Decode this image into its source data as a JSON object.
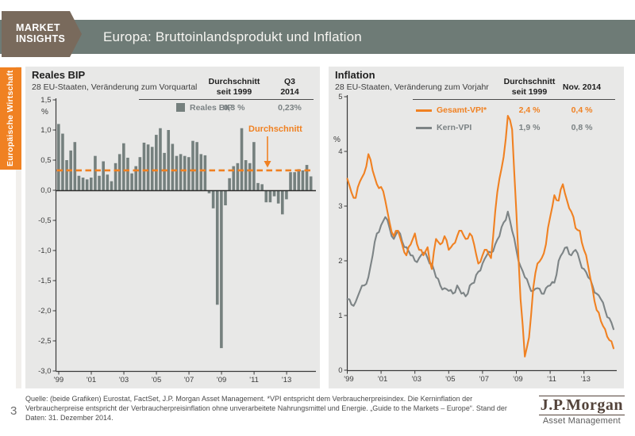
{
  "header": {
    "brand_line1": "MARKET",
    "brand_line2": "INSIGHTS",
    "title": "Europa: Bruttoinlandsprodukt und Inflation"
  },
  "sidebar": {
    "tab_label": "Europäische Wirtschaft"
  },
  "colors": {
    "accent_orange": "#F08122",
    "series_gray": "#75807E",
    "line_gray": "#7D8486",
    "header_bar": "#6E7B76",
    "brand_brown": "#796A5C",
    "panel_bg": "#E8E8E7"
  },
  "chart_data": [
    {
      "id": "reales-bip",
      "type": "bar",
      "title": "Reales BIP",
      "subtitle": "28 EU-Staaten, Veränderung zum Vorquartal",
      "ylabel": "%",
      "ylim": [
        -3.0,
        1.5
      ],
      "yticks": [
        "1,5",
        "1,0",
        "0,5",
        "0,0",
        "-0,5",
        "-1,0",
        "-1,5",
        "-2,0",
        "-2,5",
        "-3,0"
      ],
      "xticks": [
        "'99",
        "'01",
        "'03",
        "'05",
        "'07",
        "'09",
        "'11",
        "'13"
      ],
      "x_start_year": 1999,
      "frequency": "quarterly",
      "categories_note": "1999Q1 bis 2014Q3",
      "values": [
        1.1,
        0.94,
        0.5,
        0.66,
        0.8,
        0.24,
        0.21,
        0.18,
        0.21,
        0.57,
        0.24,
        0.48,
        0.26,
        0.15,
        0.45,
        0.6,
        0.78,
        0.54,
        0.28,
        0.4,
        0.55,
        0.79,
        0.76,
        0.72,
        0.92,
        1.03,
        0.62,
        1.0,
        0.77,
        0.57,
        0.6,
        0.57,
        0.55,
        0.82,
        0.8,
        0.6,
        0.58,
        -0.05,
        -0.3,
        -1.9,
        -2.62,
        -0.25,
        0.2,
        0.4,
        0.45,
        1.03,
        0.5,
        0.45,
        0.8,
        0.12,
        0.1,
        -0.2,
        -0.2,
        -0.1,
        -0.22,
        -0.4,
        -0.15,
        0.3,
        0.3,
        0.35,
        0.33,
        0.42,
        0.23
      ],
      "average_line": 0.33,
      "annotation": "Durchschnitt",
      "stats": {
        "col1_header": "Durchschnitt\nseit 1999",
        "col2_header": "Q3\n2014",
        "series_label": "Reales BIP",
        "avg": "0,3 %",
        "latest": "0,23%"
      }
    },
    {
      "id": "inflation",
      "type": "line",
      "title": "Inflation",
      "subtitle": "28 EU-Staaten, Veränderung zum Vorjahr",
      "ylabel": "%",
      "ylim": [
        0,
        5
      ],
      "yticks": [
        "5",
        "4",
        "3",
        "2",
        "1",
        "0"
      ],
      "xticks": [
        "'99",
        "'01",
        "'03",
        "'05",
        "'07",
        "'09",
        "'11",
        "'13"
      ],
      "x_start_year": 1999,
      "x_step_years": 0.25,
      "series": [
        {
          "name": "Kern-VPI",
          "color": "#7D8486",
          "values": [
            1.3,
            1.2,
            1.25,
            1.45,
            1.55,
            1.7,
            2.1,
            2.5,
            2.65,
            2.8,
            2.6,
            2.4,
            2.55,
            2.35,
            2.25,
            2.1,
            2.0,
            2.05,
            2.15,
            2.05,
            1.95,
            1.7,
            1.55,
            1.5,
            1.45,
            1.4,
            1.55,
            1.4,
            1.35,
            1.55,
            1.6,
            1.8,
            1.95,
            2.1,
            2.15,
            2.3,
            2.45,
            2.7,
            2.9,
            2.55,
            2.2,
            1.9,
            1.7,
            1.55,
            1.45,
            1.5,
            1.4,
            1.5,
            1.55,
            1.6,
            2.0,
            2.15,
            2.25,
            2.1,
            2.2,
            2.0,
            1.85,
            1.7,
            1.55,
            1.4,
            1.3,
            1.1,
            0.95,
            0.75
          ]
        },
        {
          "name": "Gesamt-VPI*",
          "color": "#F08122",
          "values": [
            3.5,
            3.25,
            3.15,
            3.45,
            3.6,
            3.95,
            3.65,
            3.4,
            3.35,
            3.1,
            2.7,
            2.45,
            2.55,
            2.3,
            2.1,
            2.3,
            2.5,
            2.2,
            2.1,
            2.25,
            1.85,
            2.4,
            2.3,
            2.45,
            2.2,
            2.3,
            2.45,
            2.55,
            2.4,
            2.5,
            2.3,
            1.95,
            2.1,
            2.2,
            2.05,
            2.9,
            3.5,
            3.9,
            4.65,
            4.4,
            2.9,
            1.3,
            0.25,
            0.6,
            1.5,
            1.95,
            2.05,
            2.3,
            2.8,
            3.2,
            3.1,
            3.4,
            3.1,
            2.9,
            2.6,
            2.55,
            2.2,
            1.9,
            1.5,
            1.1,
            0.9,
            0.75,
            0.55,
            0.4
          ]
        }
      ],
      "stats": {
        "col1_header": "Durchschnitt\nseit 1999",
        "col2_header": "Nov. 2014",
        "rows": [
          {
            "label": "Gesamt-VPI*",
            "avg": "2,4 %",
            "latest": "0,4 %"
          },
          {
            "label": "Kern-VPI",
            "avg": "1,9 %",
            "latest": "0,8 %"
          }
        ]
      }
    }
  ],
  "footer": {
    "source": "Quelle: (beide Grafiken) Eurostat, FactSet, J.P. Morgan Asset Management. *VPI entspricht dem Verbraucherpreisindex. Die Kerninflation der Verbraucherpreise entspricht der Verbraucherpreisinflation ohne unverarbeitete Nahrungsmittel und Energie. „Guide to the Markets – Europe“. Stand der Daten: 31. Dezember 2014.",
    "page_number": "3",
    "logo_name": "J.P.Morgan",
    "logo_sub": "Asset Management"
  }
}
